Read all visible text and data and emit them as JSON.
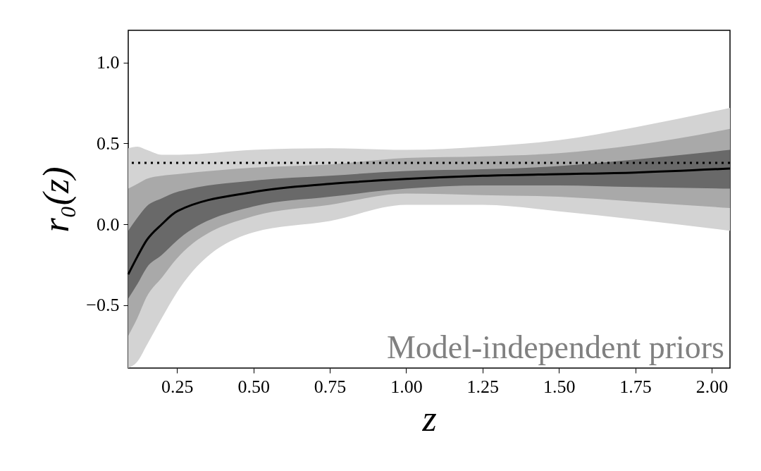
{
  "chart_data": {
    "type": "line",
    "xlabel": "z",
    "ylabel": "r₀(z)",
    "x": [
      0.09,
      0.12,
      0.15,
      0.2,
      0.25,
      0.5,
      0.75,
      1.0,
      1.25,
      1.5,
      1.75,
      2.06
    ],
    "series": [
      {
        "color": "#d3d3d3",
        "values": [
          null,
          null,
          null,
          null,
          null,
          null,
          null,
          null,
          null,
          null,
          null,
          null
        ],
        "lower": [
          -0.89,
          -0.85,
          -0.75,
          -0.58,
          -0.42,
          -0.05,
          0.02,
          0.12,
          0.12,
          0.08,
          0.03,
          -0.04
        ],
        "upper": [
          0.47,
          0.48,
          0.46,
          0.43,
          0.43,
          0.46,
          0.47,
          0.46,
          0.48,
          0.52,
          0.6,
          0.72
        ]
      },
      {
        "color": "#a9a9a9",
        "values": [
          null,
          null,
          null,
          null,
          null,
          null,
          null,
          null,
          null,
          null,
          null,
          null
        ],
        "lower": [
          -0.69,
          -0.58,
          -0.45,
          -0.33,
          -0.21,
          0.05,
          0.12,
          0.19,
          0.18,
          0.17,
          0.14,
          0.1
        ],
        "upper": [
          0.22,
          0.25,
          0.28,
          0.3,
          0.31,
          0.35,
          0.37,
          0.41,
          0.42,
          0.44,
          0.49,
          0.59
        ]
      },
      {
        "color": "#696969",
        "values": [
          null,
          null,
          null,
          null,
          null,
          null,
          null,
          null,
          null,
          null,
          null,
          null
        ],
        "lower": [
          -0.46,
          -0.37,
          -0.27,
          -0.19,
          -0.1,
          0.11,
          0.17,
          0.22,
          0.24,
          0.24,
          0.23,
          0.22
        ],
        "upper": [
          -0.04,
          0.04,
          0.11,
          0.16,
          0.2,
          0.27,
          0.3,
          0.33,
          0.34,
          0.36,
          0.4,
          0.46
        ]
      },
      {
        "color": "#000000",
        "values": [
          -0.31,
          -0.2,
          -0.1,
          0.0,
          0.08,
          0.2,
          0.25,
          0.28,
          0.3,
          0.31,
          0.32,
          0.345
        ]
      }
    ],
    "xlim": [
      0.09,
      2.06
    ],
    "ylim": [
      -0.89,
      1.2
    ],
    "xticks": [
      {
        "value": 0.25,
        "label": "0.25"
      },
      {
        "value": 0.5,
        "label": "0.50"
      },
      {
        "value": 0.75,
        "label": "0.75"
      },
      {
        "value": 1.0,
        "label": "1.00"
      },
      {
        "value": 1.25,
        "label": "1.25"
      },
      {
        "value": 1.5,
        "label": "1.50"
      },
      {
        "value": 1.75,
        "label": "1.75"
      },
      {
        "value": 2.0,
        "label": "2.00"
      }
    ],
    "yticks": [
      {
        "value": -0.5,
        "label": "−0.5"
      },
      {
        "value": 0.0,
        "label": "0.0"
      },
      {
        "value": 0.5,
        "label": "0.5"
      },
      {
        "value": 1.0,
        "label": "1.0"
      }
    ],
    "ref_lines": [
      {
        "axis": "y",
        "value": 0.38,
        "color": "#000000",
        "line_style": "dotted"
      }
    ],
    "annotations": [
      "Model-independent priors"
    ],
    "grid": false,
    "marker": "none",
    "line_style": "solid"
  }
}
